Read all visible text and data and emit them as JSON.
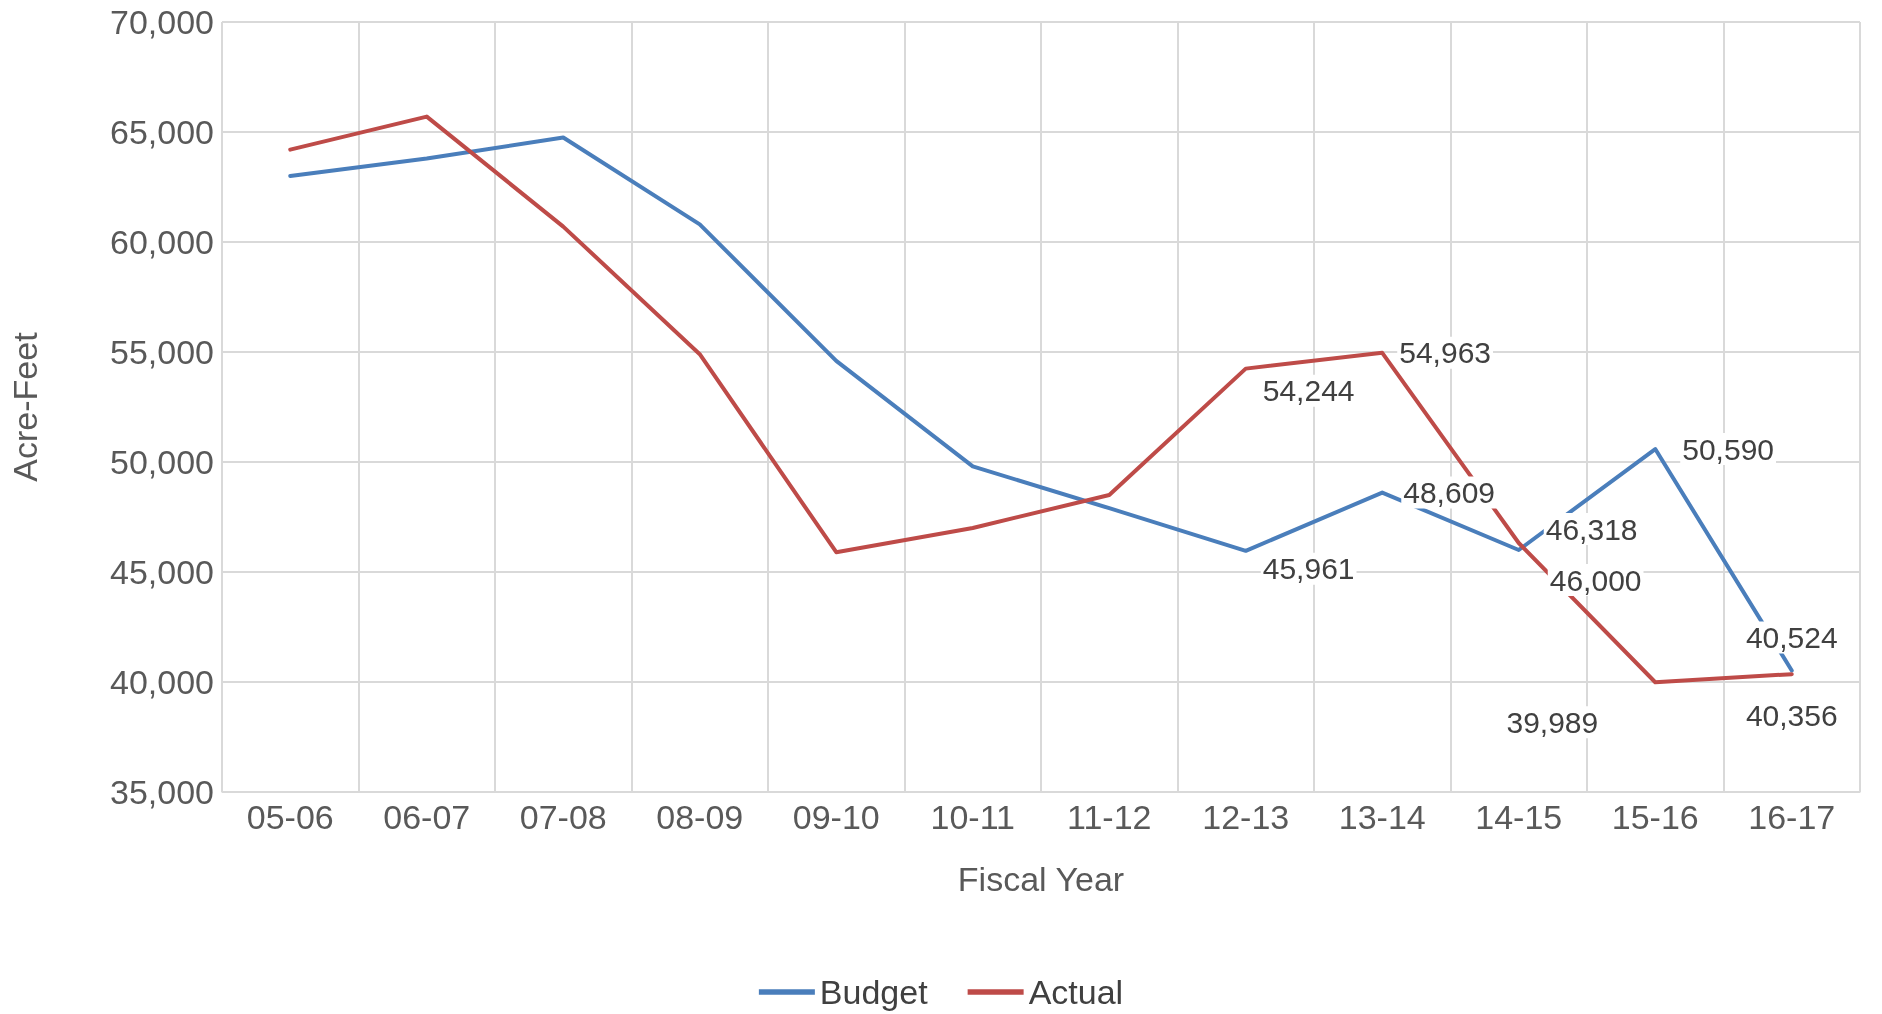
{
  "chart_data": {
    "type": "line",
    "xlabel": "Fiscal Year",
    "ylabel": "Acre-Feet",
    "categories": [
      "05-06",
      "06-07",
      "07-08",
      "08-09",
      "09-10",
      "10-11",
      "11-12",
      "12-13",
      "13-14",
      "14-15",
      "15-16",
      "16-17"
    ],
    "series": [
      {
        "name": "Budget",
        "color": "#4a7ebb",
        "values": [
          63000,
          63800,
          64750,
          60800,
          54600,
          49800,
          47900,
          45961,
          48609,
          46000,
          50590,
          40524
        ],
        "value_labels": [
          null,
          null,
          null,
          null,
          null,
          null,
          null,
          "45,961",
          "48,609",
          "46,000",
          "50,590",
          "40,524"
        ]
      },
      {
        "name": "Actual",
        "color": "#be4b48",
        "values": [
          64200,
          65700,
          60700,
          54900,
          45900,
          47000,
          48500,
          54244,
          54963,
          46318,
          39989,
          40356
        ],
        "value_labels": [
          null,
          null,
          null,
          null,
          null,
          null,
          null,
          "54,244",
          "54,963",
          "46,318",
          "39,989",
          "40,356"
        ]
      }
    ],
    "ylim": [
      35000,
      70000
    ],
    "yticks": [
      {
        "value": 35000,
        "label": "35,000"
      },
      {
        "value": 40000,
        "label": "40,000"
      },
      {
        "value": 45000,
        "label": "45,000"
      },
      {
        "value": 50000,
        "label": "50,000"
      },
      {
        "value": 55000,
        "label": "55,000"
      },
      {
        "value": 60000,
        "label": "60,000"
      },
      {
        "value": 65000,
        "label": "65,000"
      },
      {
        "value": 70000,
        "label": "70,000"
      }
    ],
    "grid": true,
    "legend": "bottom",
    "marker": "none",
    "line_style": "solid"
  }
}
